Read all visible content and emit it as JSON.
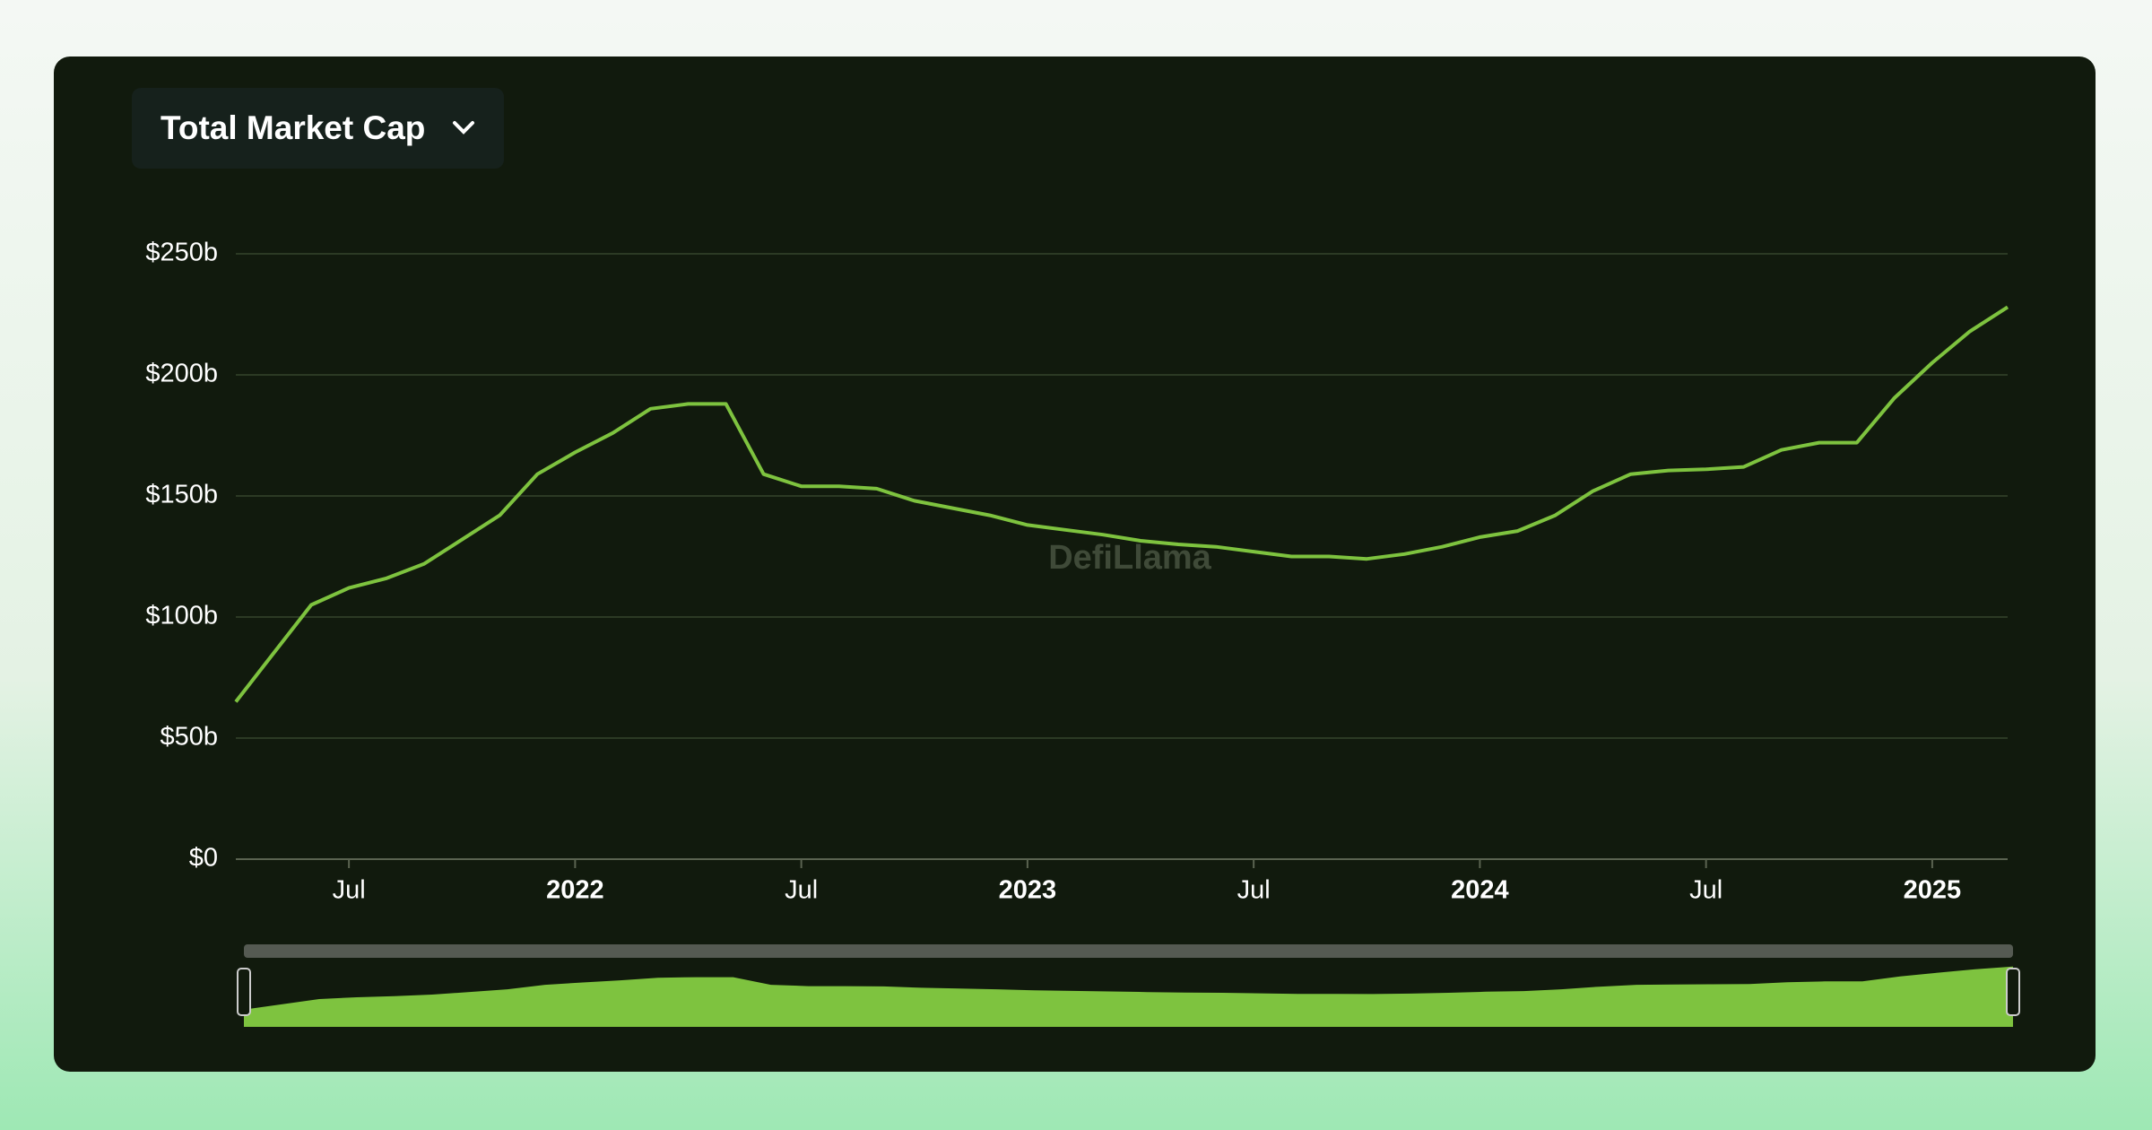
{
  "header": {
    "dropdown": "Total Market Cap"
  },
  "chart_data": {
    "type": "line",
    "watermark": "DefiLlama",
    "x": [
      "2021-04",
      "2021-05",
      "2021-06",
      "2021-07",
      "2021-08",
      "2021-09",
      "2021-10",
      "2021-11",
      "2021-12",
      "2022-01",
      "2022-02",
      "2022-03",
      "2022-04",
      "2022-05",
      "2022-06",
      "2022-07",
      "2022-08",
      "2022-09",
      "2022-10",
      "2022-11",
      "2022-12",
      "2023-01",
      "2023-02",
      "2023-03",
      "2023-04",
      "2023-05",
      "2023-06",
      "2023-07",
      "2023-08",
      "2023-09",
      "2023-10",
      "2023-11",
      "2023-12",
      "2024-01",
      "2024-02",
      "2024-03",
      "2024-04",
      "2024-05",
      "2024-06",
      "2024-07",
      "2024-08",
      "2024-09",
      "2024-10",
      "2024-11",
      "2024-12",
      "2025-01",
      "2025-02",
      "2025-03"
    ],
    "series": [
      {
        "color": "#7ec33f",
        "values": [
          65,
          85,
          105,
          112,
          116,
          122,
          132,
          142,
          159,
          168,
          176,
          186,
          188,
          188,
          159,
          154,
          154,
          153,
          148,
          145,
          142,
          138,
          136,
          134,
          131.5,
          130,
          129,
          127,
          125,
          125,
          124,
          126,
          129,
          133,
          135.5,
          142,
          152,
          159,
          160.5,
          161,
          162,
          169,
          172,
          172,
          190.5,
          205,
          218,
          228
        ]
      }
    ],
    "xlim": [
      "2021-04",
      "2025-03"
    ],
    "xticks": [
      {
        "value": "2021-07",
        "label": "Jul"
      },
      {
        "value": "2022-01",
        "label": "2022"
      },
      {
        "value": "2022-07",
        "label": "Jul"
      },
      {
        "value": "2023-01",
        "label": "2023"
      },
      {
        "value": "2023-07",
        "label": "Jul"
      },
      {
        "value": "2024-01",
        "label": "2024"
      },
      {
        "value": "2024-07",
        "label": "Jul"
      },
      {
        "value": "2025-01",
        "label": "2025"
      }
    ],
    "ylim": [
      0,
      250
    ],
    "yticks": [
      {
        "value": 0,
        "label": "$0"
      },
      {
        "value": 50,
        "label": "$50b"
      },
      {
        "value": 100,
        "label": "$100b"
      },
      {
        "value": 150,
        "label": "$150b"
      },
      {
        "value": 200,
        "label": "$200b"
      },
      {
        "value": 250,
        "label": "$250b"
      }
    ],
    "grid": true
  }
}
